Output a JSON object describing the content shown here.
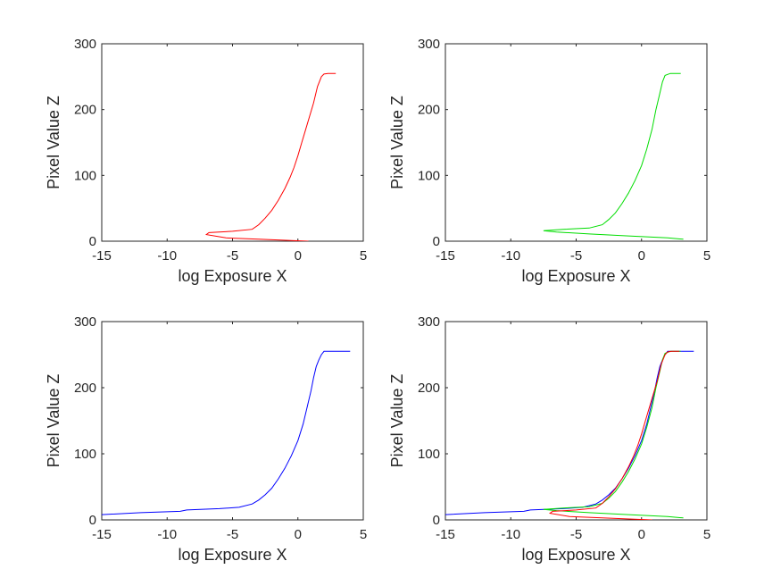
{
  "chart_data": [
    {
      "type": "line",
      "xlabel": "log Exposure X",
      "ylabel": "Pixel Value Z",
      "xlim": [
        -15,
        5
      ],
      "ylim": [
        0,
        300
      ],
      "xticks": [
        "-15",
        "-10",
        "-5",
        "0",
        "5"
      ],
      "yticks": [
        "0",
        "100",
        "200",
        "300"
      ],
      "grid": false,
      "series": [
        {
          "color": "#ff0000",
          "x": [
            0.8,
            -0.5,
            -3.0,
            -5.5,
            -7.0,
            -6.8,
            -5.0,
            -3.5,
            -3.0,
            -2.5,
            -2.0,
            -1.5,
            -1.0,
            -0.6,
            -0.3,
            0.0,
            0.3,
            0.6,
            0.9,
            1.2,
            1.5,
            1.8,
            2.0,
            2.3,
            2.6,
            2.9
          ],
          "y": [
            0,
            1,
            3,
            5,
            10,
            13,
            15,
            18,
            25,
            35,
            47,
            62,
            80,
            97,
            112,
            130,
            150,
            170,
            190,
            210,
            235,
            250,
            254,
            255,
            255,
            255
          ]
        },
        {
          "color": "#00dd00",
          "x": [
            3.2,
            2.0,
            -1.0,
            -4.0,
            -6.5,
            -7.5,
            -6.0,
            -4.0,
            -3.0,
            -2.5,
            -2.0,
            -1.5,
            -1.0,
            -0.5,
            0.0,
            0.4,
            0.8,
            1.1,
            1.4,
            1.6,
            1.8,
            2.2,
            2.6,
            3.0
          ],
          "y": [
            3,
            5,
            8,
            11,
            14,
            16,
            18,
            20,
            25,
            33,
            43,
            57,
            73,
            92,
            115,
            140,
            170,
            200,
            225,
            242,
            252,
            255,
            255,
            255
          ]
        },
        {
          "color": "#0000ff",
          "x": [
            -15,
            -12,
            -9,
            -8.5,
            -6,
            -4.5,
            -3.5,
            -3.0,
            -2.5,
            -2.0,
            -1.5,
            -1.0,
            -0.5,
            0.0,
            0.4,
            0.7,
            1.0,
            1.2,
            1.4,
            1.6,
            1.8,
            2.0,
            2.5,
            3.0,
            3.5,
            4.0
          ],
          "y": [
            8,
            11,
            13,
            15,
            17,
            19,
            24,
            30,
            38,
            48,
            62,
            78,
            97,
            120,
            145,
            170,
            195,
            215,
            232,
            242,
            250,
            255,
            255,
            255,
            255,
            255
          ]
        }
      ]
    }
  ]
}
